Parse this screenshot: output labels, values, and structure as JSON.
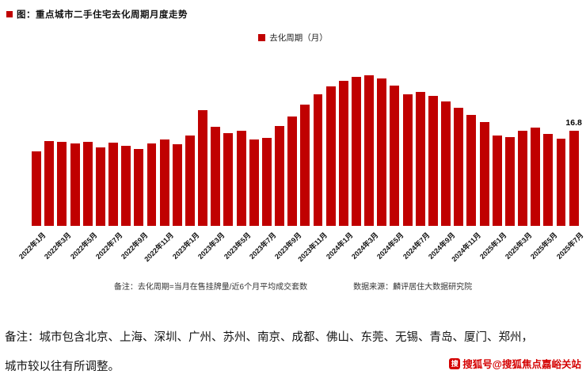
{
  "header": {
    "title": "图：重点城市二手住宅去化周期月度走势"
  },
  "legend": {
    "label": "去化周期（月）"
  },
  "chart_data": {
    "type": "bar",
    "title": "重点城市二手住宅去化周期月度走势",
    "series_name": "去化周期（月）",
    "bar_color": "#c00000",
    "ylim": [
      0,
      28
    ],
    "grid": false,
    "legend_position": "top-center",
    "categories": [
      "2022年1月",
      "2022年2月",
      "2022年3月",
      "2022年4月",
      "2022年5月",
      "2022年6月",
      "2022年7月",
      "2022年8月",
      "2022年9月",
      "2022年10月",
      "2022年11月",
      "2022年12月",
      "2023年1月",
      "2023年2月",
      "2023年3月",
      "2023年4月",
      "2023年5月",
      "2023年6月",
      "2023年7月",
      "2023年8月",
      "2023年9月",
      "2023年10月",
      "2023年11月",
      "2023年12月",
      "2024年1月",
      "2024年2月",
      "2024年3月",
      "2024年4月",
      "2024年5月",
      "2024年6月",
      "2024年7月",
      "2024年8月",
      "2024年9月",
      "2024年10月",
      "2024年11月",
      "2024年12月",
      "2025年1月",
      "2025年2月",
      "2025年3月",
      "2025年4月",
      "2025年5月",
      "2025年6月",
      "2025年7月"
    ],
    "x_tick_labels": [
      "2022年1月",
      "2022年3月",
      "2022年5月",
      "2022年7月",
      "2022年9月",
      "2022年11月",
      "2023年1月",
      "2023年3月",
      "2023年5月",
      "2023年7月",
      "2023年9月",
      "2023年11月",
      "2024年1月",
      "2024年3月",
      "2024年5月",
      "2024年7月",
      "2024年9月",
      "2024年11月",
      "2025年1月",
      "2025年3月",
      "2025年5月",
      "2025年7月"
    ],
    "values": [
      13.2,
      15.0,
      14.8,
      14.5,
      14.9,
      13.8,
      14.7,
      14.2,
      13.6,
      14.6,
      15.2,
      14.4,
      16.0,
      20.5,
      17.5,
      16.4,
      16.8,
      15.2,
      15.6,
      17.6,
      19.3,
      21.4,
      23.2,
      24.6,
      25.6,
      26.3,
      26.6,
      26.1,
      24.8,
      23.3,
      23.7,
      23.0,
      22.0,
      20.9,
      19.6,
      18.3,
      16.0,
      15.7,
      16.8,
      17.3,
      16.2,
      15.4,
      16.8
    ],
    "last_value_label": "16.8"
  },
  "footnotes": {
    "note": "备注：去化周期=当月在售挂牌量/近6个月平均成交套数",
    "source": "数据来源：麟评居住大数据研究院"
  },
  "bottom_note": {
    "line1": "备注：城市包含北京、上海、深圳、广州、苏州、南京、成都、佛山、东莞、无锡、青岛、厦门、郑州，",
    "line2": "城市较以往有所调整。"
  },
  "watermark": {
    "icon_label": "搜",
    "text": "搜狐号@搜狐焦点嘉峪关站"
  }
}
